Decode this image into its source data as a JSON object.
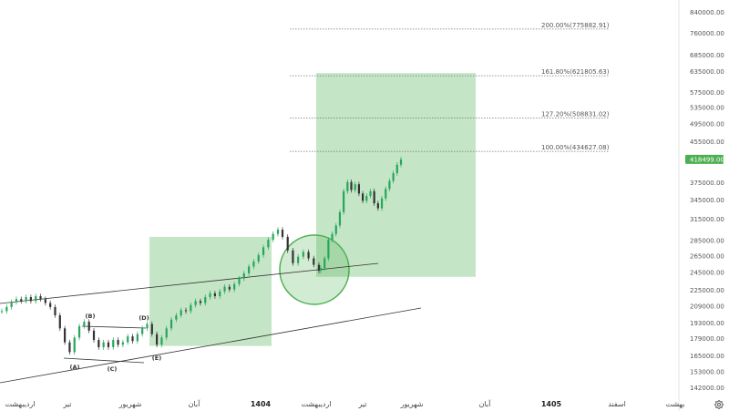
{
  "chart_data": {
    "type": "candlestick",
    "title": "",
    "y_scale": "log",
    "ylim": [
      138000,
      860000
    ],
    "y_ticks": [
      "840000.00",
      "760000.00",
      "685000.00",
      "635000.00",
      "575000.00",
      "535000.00",
      "495000.00",
      "455000.00",
      "375000.00",
      "345000.00",
      "315000.00",
      "285000.00",
      "265000.00",
      "245000.00",
      "225000.00",
      "209000.00",
      "193000.00",
      "179000.00",
      "165000.00",
      "153000.00",
      "142000.00"
    ],
    "x_labels": [
      {
        "label": "اردیبهشت",
        "bold": false
      },
      {
        "label": "تیر",
        "bold": false
      },
      {
        "label": "شهریور",
        "bold": false
      },
      {
        "label": "آبان",
        "bold": false
      },
      {
        "label": "1404",
        "bold": true
      },
      {
        "label": "اردیبهشت",
        "bold": false
      },
      {
        "label": "تیر",
        "bold": false
      },
      {
        "label": "شهریور",
        "bold": false
      },
      {
        "label": "آبان",
        "bold": false
      },
      {
        "label": "1405",
        "bold": true
      },
      {
        "label": "اسفند",
        "bold": false
      },
      {
        "label": "بهشت",
        "bold": false
      }
    ],
    "last_price": {
      "label": "418499.00",
      "value": 418499,
      "color": "#4caf50"
    },
    "fib_levels": [
      {
        "label": "200.00%(775882.91)",
        "value": 775882.91
      },
      {
        "label": "161.80%(621805.63)",
        "value": 621805.63
      },
      {
        "label": "127.20%(508831.02)",
        "value": 508831.02
      },
      {
        "label": "100.00%(434627.08)",
        "value": 434627.08
      }
    ],
    "wave_labels": [
      "(A)",
      "(B)",
      "(C)",
      "(D)",
      "(E)"
    ],
    "price_path": [
      204000,
      208000,
      213000,
      216000,
      214000,
      218000,
      214000,
      219000,
      216000,
      212000,
      208000,
      200000,
      188000,
      176000,
      168000,
      180000,
      190000,
      194000,
      186000,
      178000,
      172000,
      176000,
      172000,
      178000,
      174000,
      176000,
      181000,
      177000,
      183000,
      188000,
      192000,
      183000,
      174000,
      180000,
      188000,
      196000,
      200000,
      205000,
      204000,
      210000,
      214000,
      212000,
      218000,
      222000,
      219000,
      224000,
      229000,
      226000,
      232000,
      238000,
      244000,
      252000,
      258000,
      266000,
      276000,
      286000,
      294000,
      300000,
      290000,
      272000,
      256000,
      264000,
      270000,
      262000,
      254000,
      247000,
      250000,
      262000,
      286000,
      294000,
      306000,
      326000,
      360000,
      376000,
      362000,
      372000,
      356000,
      344000,
      352000,
      360000,
      340000,
      332000,
      348000,
      364000,
      378000,
      392000,
      408000,
      418499
    ],
    "colors": {
      "up": "#26a65b",
      "down": "#333333",
      "zone": "#4caf50"
    }
  }
}
